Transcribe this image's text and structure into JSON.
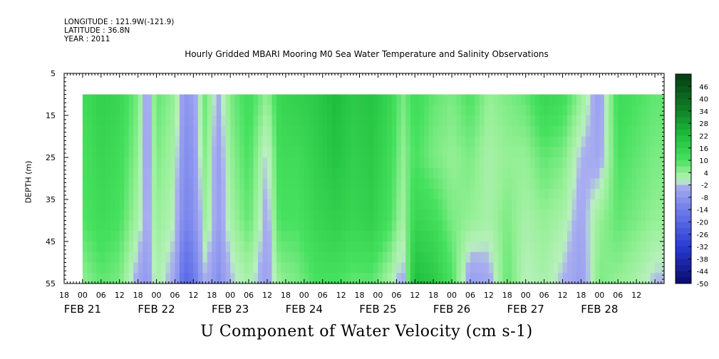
{
  "header": {
    "longitude": "LONGITUDE : 121.9W(-121.9)",
    "latitude": "LATITUDE : 36.8N",
    "year": "YEAR : 2011",
    "title": "Hourly Gridded MBARI Mooring M0 Sea Water Temperature and Salinity Observations"
  },
  "chart_data": {
    "type": "heatmap",
    "title": "Hourly Gridded MBARI Mooring M0 Sea Water Temperature and Salinity Observations",
    "xlabel": "U Component of Water Velocity (cm s-1)",
    "ylabel": "DEPTH (m)",
    "ylim": [
      5,
      55
    ],
    "y_inverted": true,
    "y_ticks": [
      5,
      15,
      25,
      35,
      45,
      55
    ],
    "data_depth_range": [
      10,
      55
    ],
    "time_range_hours": [
      -6,
      189
    ],
    "time_origin_label": "FEB 21 00",
    "x_hour_ticks": [
      "18",
      "00",
      "06",
      "12",
      "18",
      "00",
      "06",
      "12",
      "18",
      "00",
      "06",
      "12",
      "18",
      "00",
      "06",
      "12",
      "18",
      "00",
      "06",
      "12",
      "18",
      "00",
      "06",
      "12",
      "18",
      "00",
      "06",
      "12",
      "18",
      "00",
      "06",
      "12"
    ],
    "x_day_labels": [
      "FEB 21",
      "FEB 22",
      "FEB 23",
      "FEB 24",
      "FEB 25",
      "FEB 26",
      "FEB 27",
      "FEB 28"
    ],
    "colorbar_levels": [
      46,
      40,
      34,
      28,
      22,
      16,
      10,
      4,
      -2,
      -8,
      -14,
      -20,
      -26,
      -32,
      -38,
      -44,
      -50
    ],
    "colorbar_range": [
      -50,
      52
    ],
    "colors": {
      "strong_positive": "#0a4a1a",
      "positive": "#33dd55",
      "near_zero": "#b8f5b8",
      "negative": "#9aa5ee",
      "strong_negative": "#1a1a8a"
    },
    "column_profiles_description_note": "",
    "profiles": [
      {
        "t": 0,
        "u": [
          12,
          10,
          9,
          4
        ]
      },
      {
        "t": 6,
        "u": [
          16,
          14,
          12,
          8
        ]
      },
      {
        "t": 12,
        "u": [
          14,
          12,
          10,
          6
        ]
      },
      {
        "t": 18,
        "u": [
          6,
          4,
          2,
          -4
        ]
      },
      {
        "t": 21,
        "u": [
          -6,
          -6,
          -4,
          -8
        ]
      },
      {
        "t": 24,
        "u": [
          8,
          6,
          4,
          2
        ]
      },
      {
        "t": 30,
        "u": [
          4,
          2,
          0,
          -4
        ]
      },
      {
        "t": 33,
        "u": [
          -8,
          -10,
          -12,
          -20
        ]
      },
      {
        "t": 36,
        "u": [
          -6,
          -8,
          -10,
          -16
        ]
      },
      {
        "t": 40,
        "u": [
          8,
          6,
          4,
          -2
        ]
      },
      {
        "t": 44,
        "u": [
          -4,
          -6,
          -6,
          -10
        ]
      },
      {
        "t": 48,
        "u": [
          6,
          4,
          2,
          -2
        ]
      },
      {
        "t": 54,
        "u": [
          12,
          10,
          8,
          2
        ]
      },
      {
        "t": 60,
        "u": [
          4,
          -2,
          -4,
          -6
        ]
      },
      {
        "t": 64,
        "u": [
          14,
          12,
          10,
          4
        ]
      },
      {
        "t": 70,
        "u": [
          16,
          12,
          10,
          6
        ]
      },
      {
        "t": 76,
        "u": [
          18,
          16,
          14,
          10
        ]
      },
      {
        "t": 82,
        "u": [
          22,
          20,
          16,
          10
        ]
      },
      {
        "t": 88,
        "u": [
          18,
          16,
          14,
          8
        ]
      },
      {
        "t": 94,
        "u": [
          20,
          18,
          16,
          8
        ]
      },
      {
        "t": 100,
        "u": [
          14,
          12,
          10,
          2
        ]
      },
      {
        "t": 104,
        "u": [
          6,
          4,
          2,
          -4
        ]
      },
      {
        "t": 108,
        "u": [
          12,
          10,
          14,
          22
        ]
      },
      {
        "t": 114,
        "u": [
          8,
          6,
          12,
          18
        ]
      },
      {
        "t": 120,
        "u": [
          6,
          4,
          6,
          10
        ]
      },
      {
        "t": 126,
        "u": [
          10,
          6,
          4,
          -6
        ]
      },
      {
        "t": 132,
        "u": [
          4,
          2,
          2,
          -4
        ]
      },
      {
        "t": 138,
        "u": [
          6,
          4,
          6,
          8
        ]
      },
      {
        "t": 144,
        "u": [
          8,
          4,
          2,
          0
        ]
      },
      {
        "t": 150,
        "u": [
          14,
          8,
          4,
          2
        ]
      },
      {
        "t": 156,
        "u": [
          12,
          6,
          2,
          -2
        ]
      },
      {
        "t": 162,
        "u": [
          4,
          -2,
          -4,
          -6
        ]
      },
      {
        "t": 168,
        "u": [
          -6,
          -4,
          4,
          6
        ]
      },
      {
        "t": 174,
        "u": [
          12,
          10,
          8,
          4
        ]
      },
      {
        "t": 180,
        "u": [
          10,
          8,
          6,
          2
        ]
      },
      {
        "t": 186,
        "u": [
          8,
          6,
          4,
          -2
        ]
      }
    ]
  }
}
